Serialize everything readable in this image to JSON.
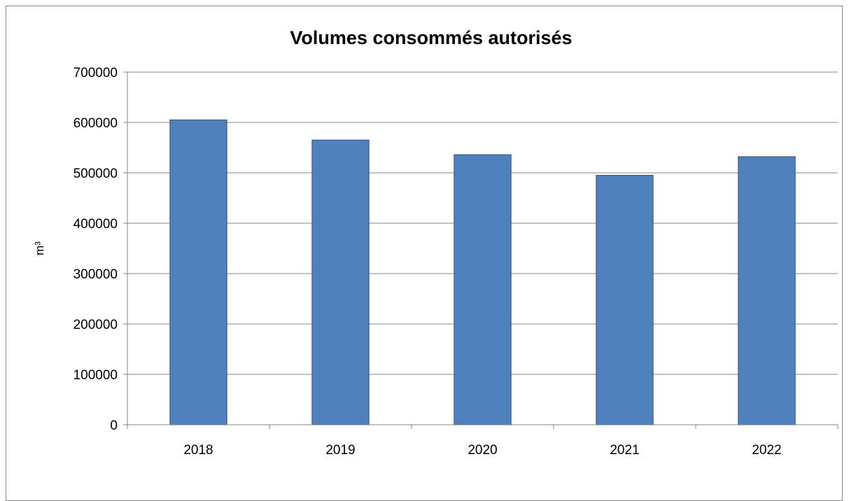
{
  "chart_data": {
    "type": "bar",
    "title": "Volumes consommés autorisés",
    "xlabel": "",
    "ylabel": "m³",
    "categories": [
      "2018",
      "2019",
      "2020",
      "2021",
      "2022"
    ],
    "values": [
      605000,
      565000,
      536000,
      495000,
      532000
    ],
    "ylim": [
      0,
      700000
    ],
    "yticks": [
      0,
      100000,
      200000,
      300000,
      400000,
      500000,
      600000,
      700000
    ],
    "grid": true,
    "legend": "none",
    "bar_color": "#4F81BD",
    "bar_edge_color": "#385D8A",
    "grid_color": "#868686"
  }
}
